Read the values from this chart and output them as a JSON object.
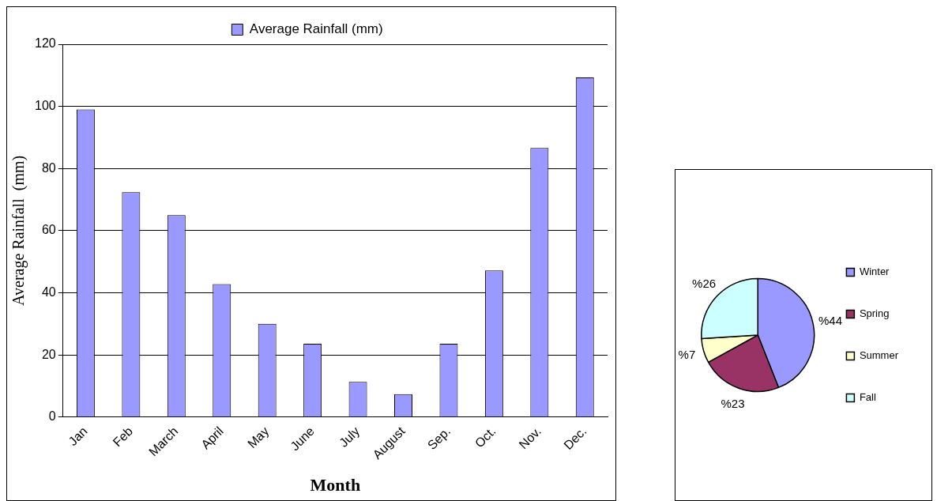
{
  "chart_data": [
    {
      "type": "bar",
      "ylabel": "Average Rainfall  (mm)",
      "xlabel": "Month",
      "categories": [
        "Jan",
        "Feb",
        "March",
        "April",
        "May",
        "June",
        "July",
        "August",
        "Sep.",
        "Oct.",
        "Nov.",
        "Dec."
      ],
      "series": [
        {
          "name": "Average Rainfall (mm)",
          "color": "#9999ff",
          "values": [
            99,
            72.4,
            65,
            42.8,
            30,
            23.6,
            11.3,
            7.4,
            23.6,
            47.2,
            86.6,
            109.3
          ]
        }
      ],
      "ylim": [
        0,
        120
      ],
      "yticks": [
        0,
        20,
        40,
        60,
        80,
        100,
        120
      ],
      "grid": "y",
      "legend": "top"
    },
    {
      "type": "pie",
      "categories": [
        "Winter",
        "Spring",
        "Summer",
        "Fall"
      ],
      "values": [
        44,
        23,
        7,
        26
      ],
      "colors": [
        "#9999ff",
        "#993366",
        "#ffffcc",
        "#ccffff"
      ],
      "value_labels": [
        "%44",
        "%23",
        "%7",
        "%26"
      ],
      "legend": "right"
    }
  ]
}
